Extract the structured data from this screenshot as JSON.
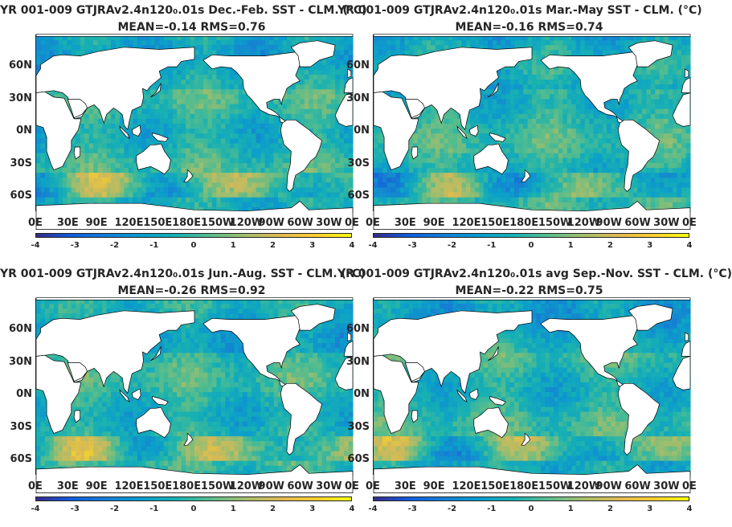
{
  "panels": [
    {
      "title": "YR 001-009 GTJRAv2.4n120₀.01s  Dec.-Feb. SST - CLM. (°C)",
      "stats": "MEAN=-0.14   RMS=0.76",
      "seed": 11
    },
    {
      "title": "YR 001-009 GTJRAv2.4n120₀.01s Mar.-May SST - CLM. (°C)",
      "stats": "MEAN=-0.16   RMS=0.74",
      "seed": 23
    },
    {
      "title": "YR 001-009 GTJRAv2.4n120₀.01s Jun.-Aug. SST - CLM. (°C)",
      "stats": "MEAN=-0.26   RMS=0.92",
      "seed": 37
    },
    {
      "title": "YR 001-009 GTJRAv2.4n120₀.01s avg Sep.-Nov. SST - CLM. (°C)",
      "stats": "MEAN=-0.22   RMS=0.75",
      "seed": 51
    }
  ],
  "lat_ticks": [
    "60N",
    "30N",
    "0N",
    "30S",
    "60S"
  ],
  "lon_ticks": [
    "0E",
    "30E",
    "90E",
    "120E",
    "150E",
    "180E",
    "150W",
    "120W",
    "90W",
    "60W",
    "30W",
    "0E"
  ],
  "colorbar": {
    "ticks": [
      "-4",
      "-3",
      "-2",
      "-1",
      "0",
      "1",
      "2",
      "3",
      "4"
    ],
    "range": [
      -4,
      4
    ],
    "colormap": "parula"
  },
  "colors": {
    "land": "#ffffff",
    "ocean_base": "#2bb8b0"
  }
}
